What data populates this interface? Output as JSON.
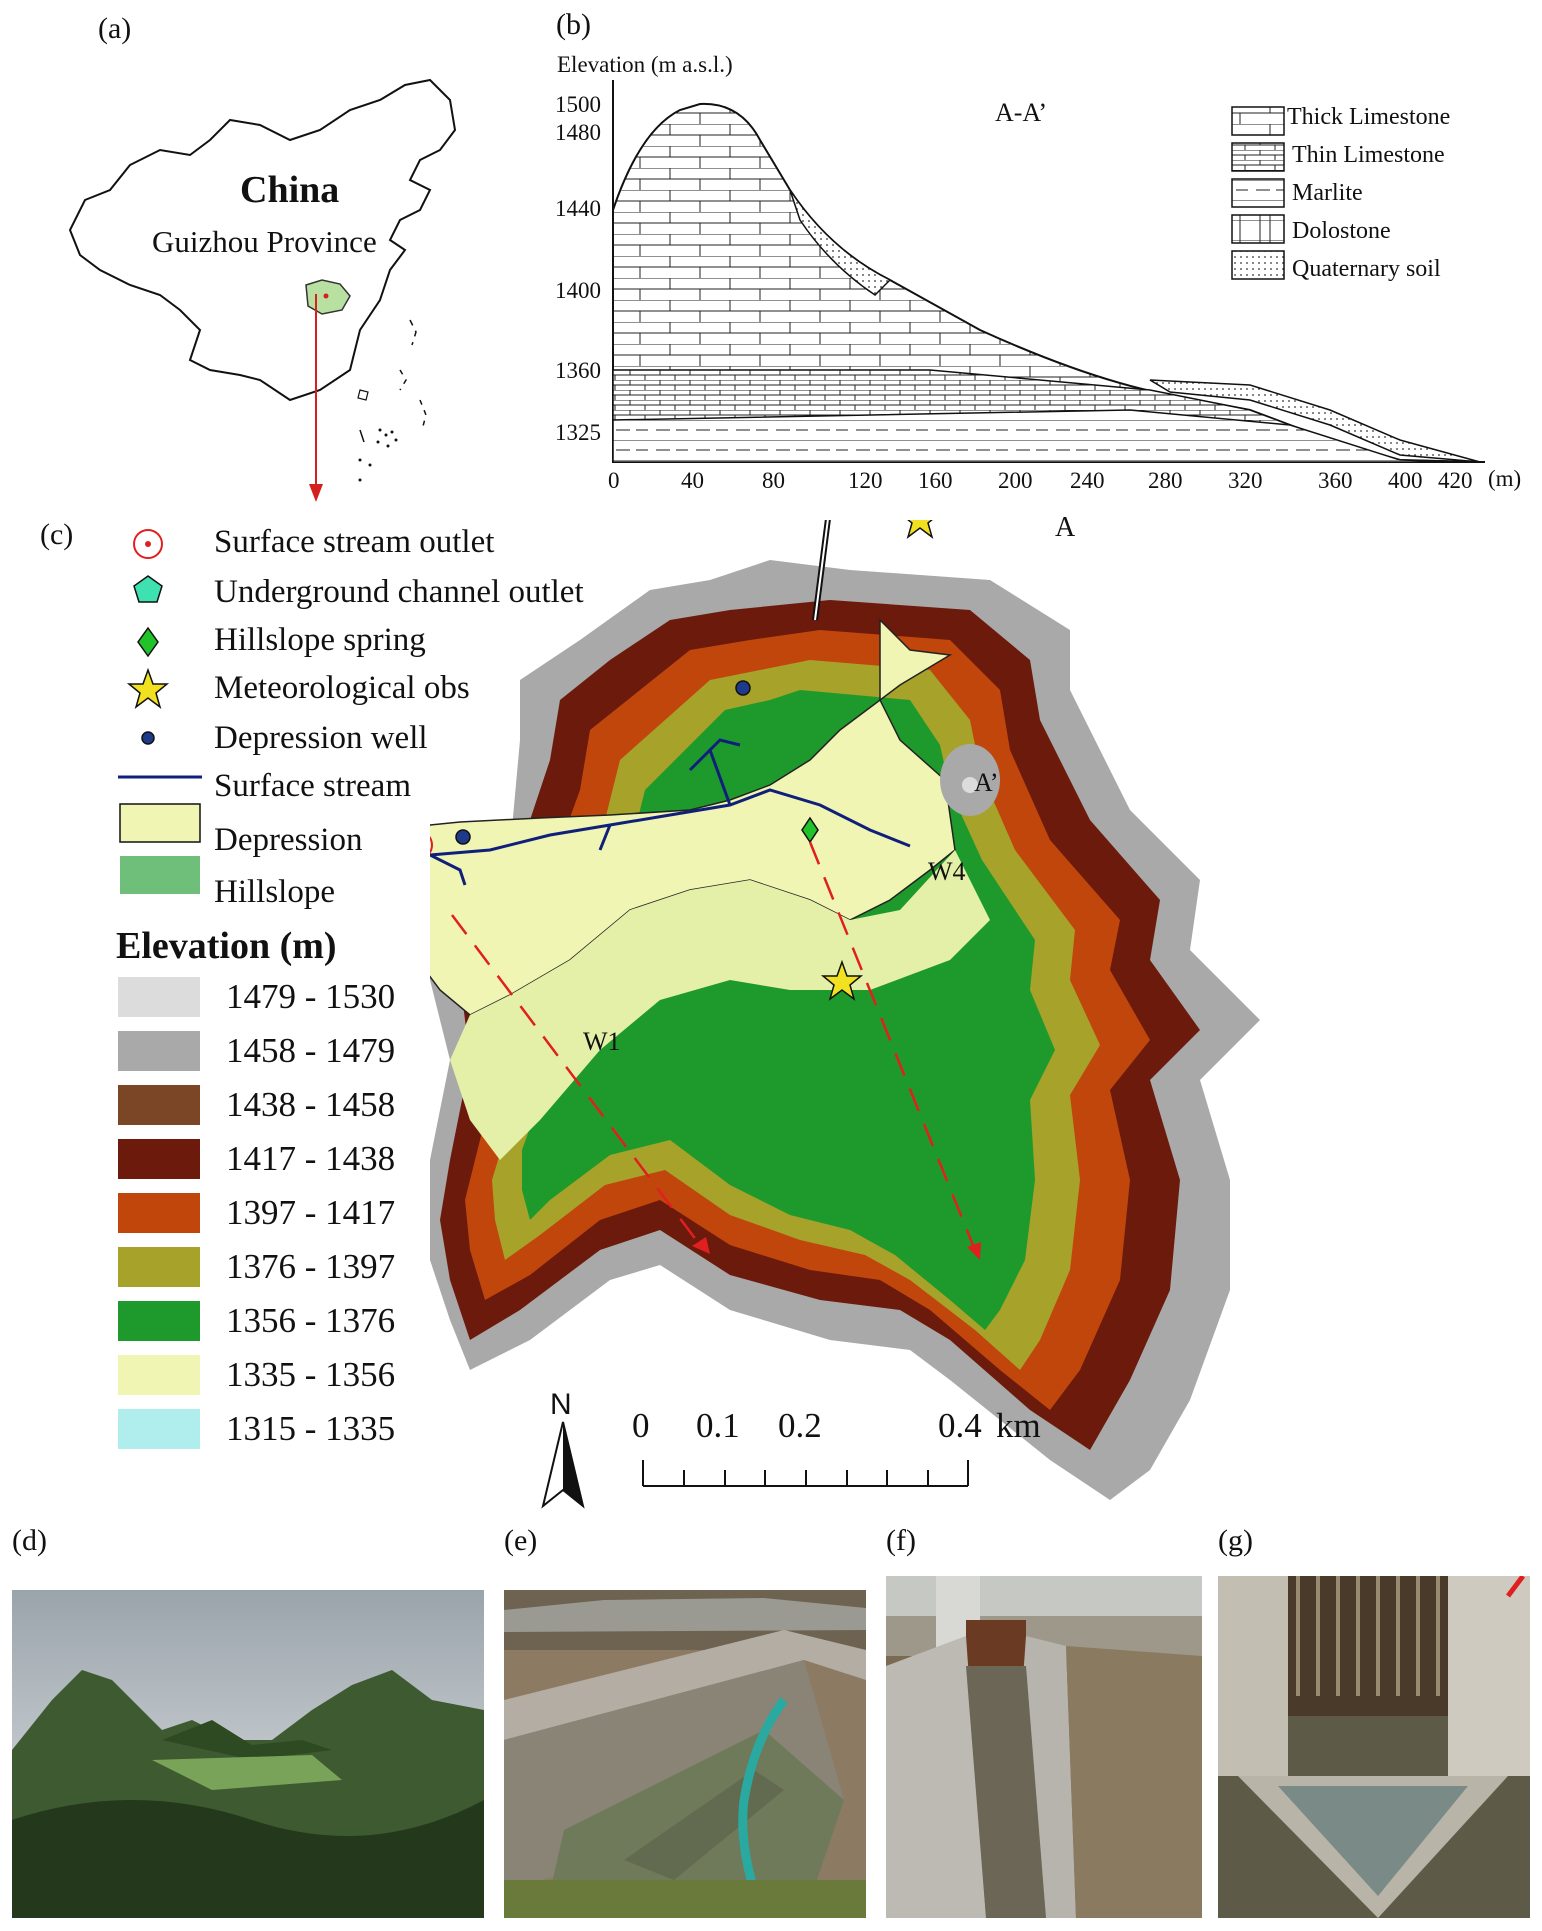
{
  "panels": {
    "a": "(a)",
    "b": "(b)",
    "c": "(c)",
    "d": "(d)",
    "e": "(e)",
    "f": "(f)",
    "g": "(g)"
  },
  "panel_a": {
    "country": "China",
    "province": "Guizhou Province"
  },
  "panel_b": {
    "ylabel": "Elevation (m a.s.l.)",
    "section": "A-A’",
    "xunit": "(m)",
    "y_ticks": [
      "1500",
      "1480",
      "1440",
      "1400",
      "1360",
      "1325"
    ],
    "x_ticks": [
      "0",
      "40",
      "80",
      "120",
      "160",
      "200",
      "240",
      "280",
      "320",
      "360",
      "400",
      "420"
    ],
    "legend": [
      "Thick Limestone",
      "Thin Limestone",
      "Marlite",
      "Dolostone",
      "Quaternary soil"
    ]
  },
  "panel_c": {
    "legend_symbols": [
      "Surface stream outlet",
      "Underground channel outlet",
      "Hillslope spring",
      "Meteorological obs",
      "Depression well",
      "Surface stream",
      "Depression",
      "Hillslope"
    ],
    "elevation_title": "Elevation (m)",
    "elevation_classes": [
      {
        "label": "1479 - 1530",
        "color": "#dcdcdc"
      },
      {
        "label": "1458 - 1479",
        "color": "#a9a9a9"
      },
      {
        "label": "1438 - 1458",
        "color": "#7a4626"
      },
      {
        "label": "1417 - 1438",
        "color": "#6b1a0c"
      },
      {
        "label": "1397 - 1417",
        "color": "#c0460c"
      },
      {
        "label": "1376 - 1397",
        "color": "#a6a22a"
      },
      {
        "label": "1356 - 1376",
        "color": "#1e9a2c"
      },
      {
        "label": "1335 - 1356",
        "color": "#f0f5b4"
      },
      {
        "label": "1315 - 1335",
        "color": "#b0eeee"
      }
    ],
    "north": "N",
    "scale_labels": [
      "0",
      "0.1",
      "0.2",
      "0.4"
    ],
    "scale_unit": "km",
    "section_start": "A",
    "section_end": "A’",
    "wells": [
      "W1",
      "W4"
    ]
  }
}
